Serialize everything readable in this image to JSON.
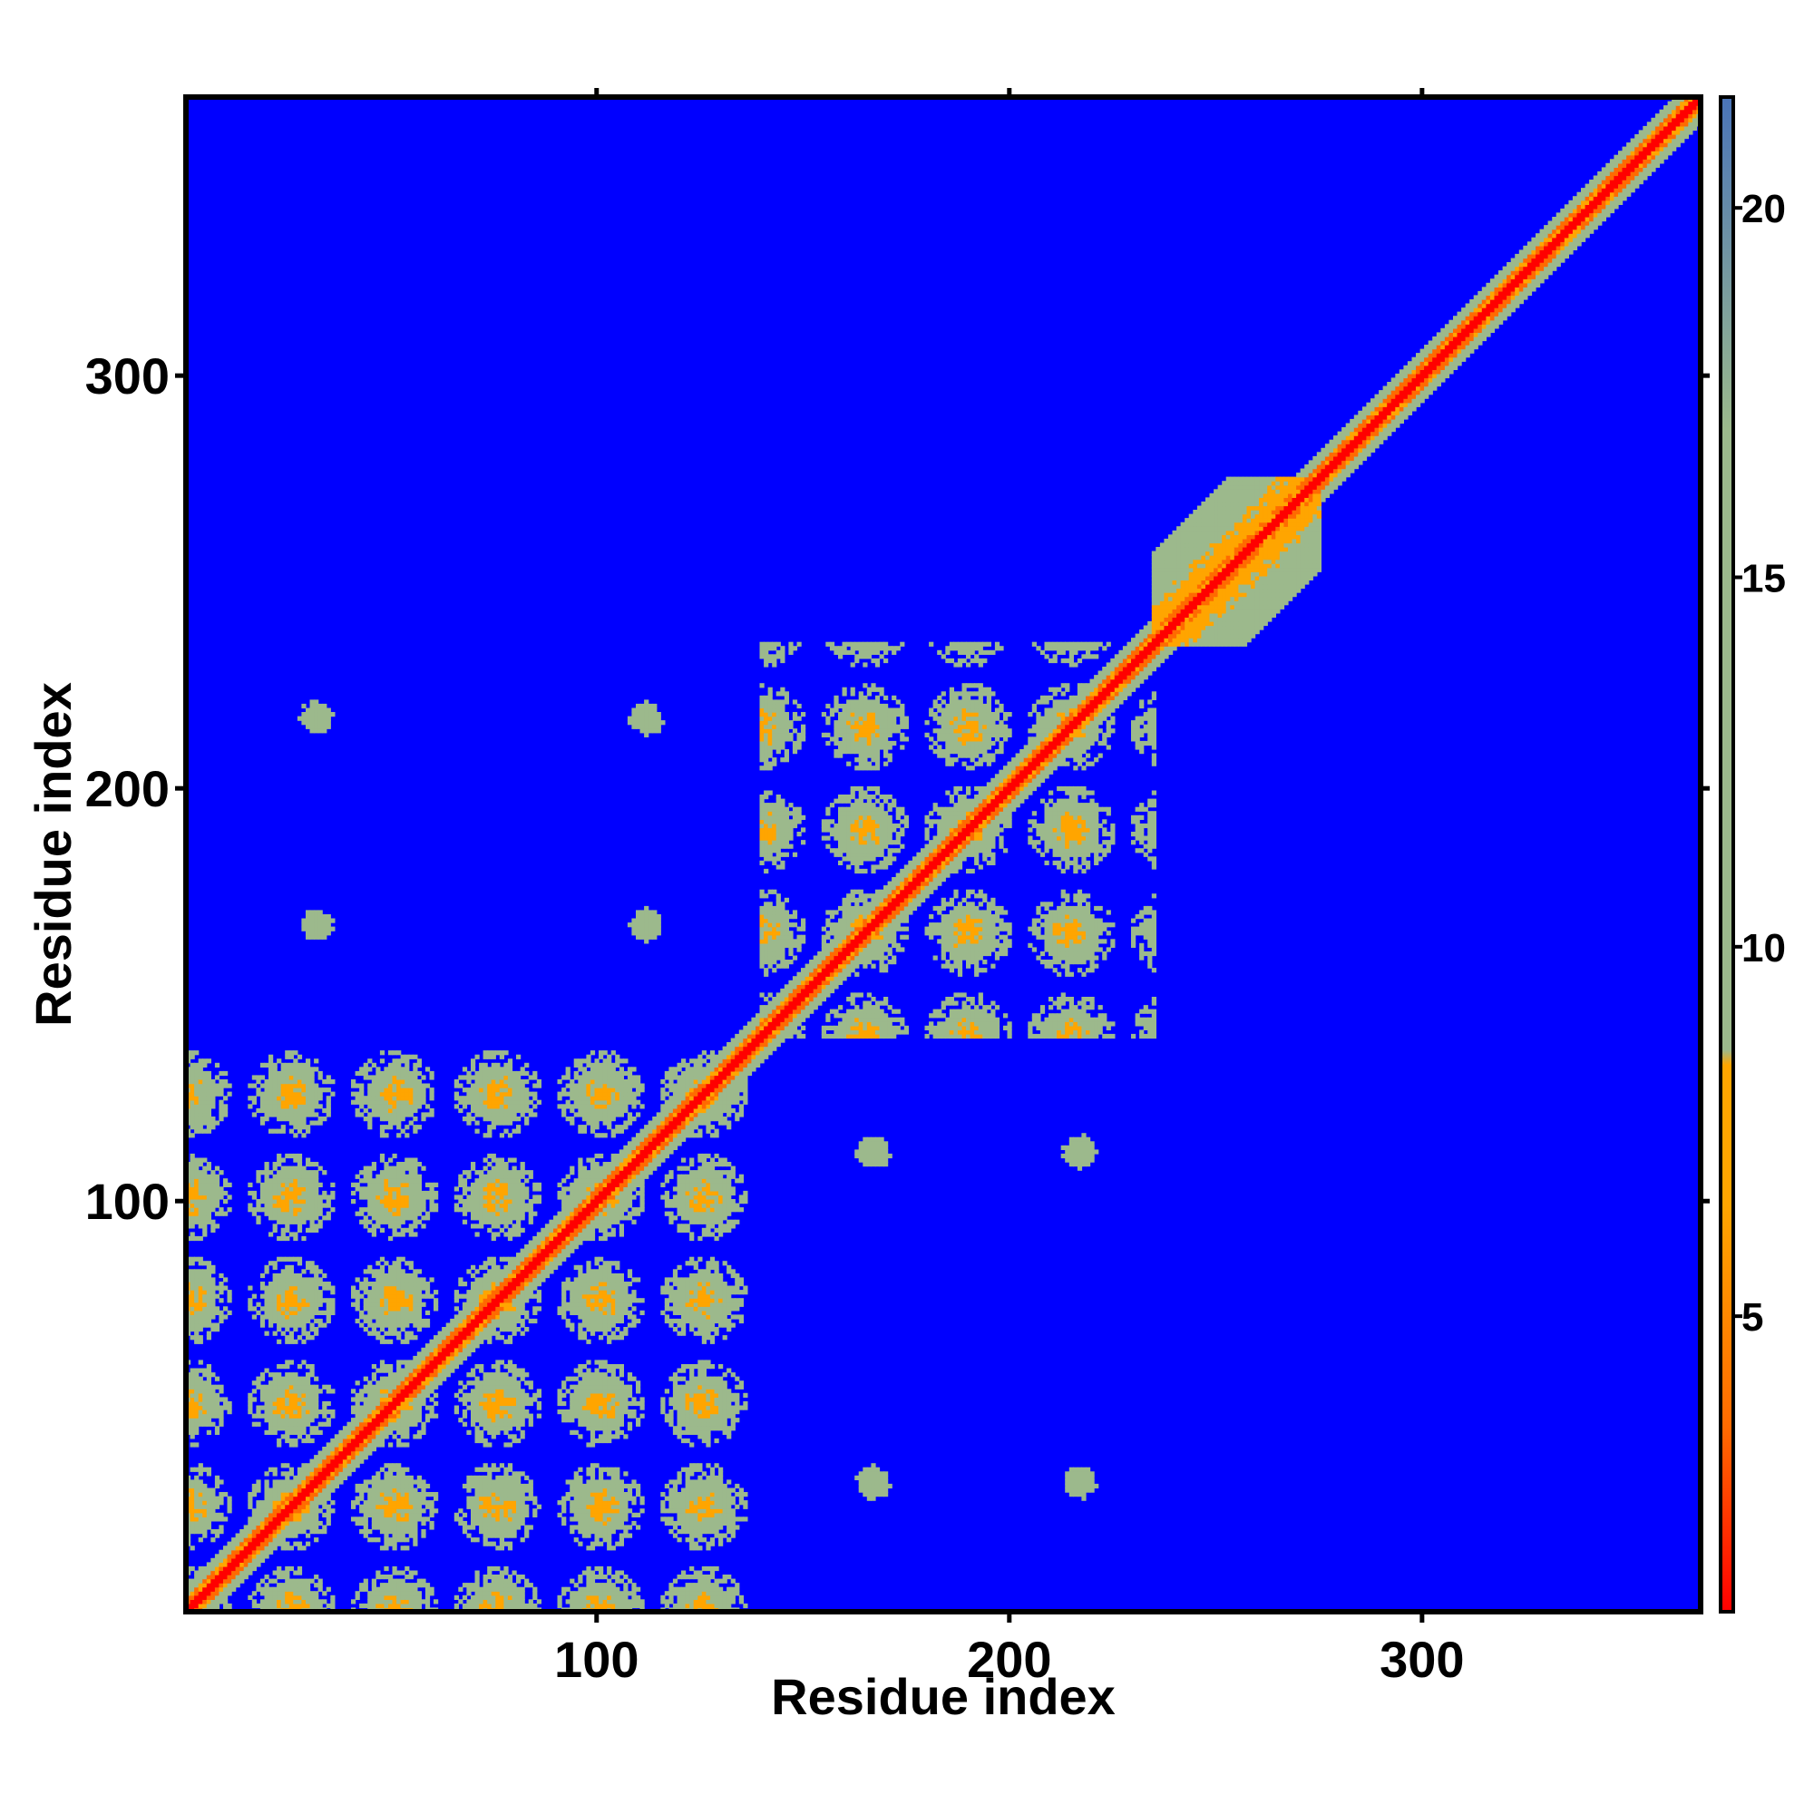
{
  "chart_data": {
    "type": "heatmap",
    "title": "",
    "xlabel": "Residue index",
    "ylabel": "Residue index",
    "xlim": [
      1,
      367
    ],
    "ylim": [
      1,
      367
    ],
    "x_ticks": [
      100,
      200,
      300
    ],
    "y_ticks": [
      100,
      200,
      300
    ],
    "x_tick_labels": [
      "100",
      "200",
      "300"
    ],
    "y_tick_labels": [
      "100",
      "200",
      "300"
    ],
    "colorbar": {
      "range": [
        1,
        21.5
      ],
      "ticks": [
        5,
        10,
        15,
        20
      ],
      "tick_labels": [
        "5",
        "10",
        "15",
        "20"
      ],
      "colors": {
        "near": "#ff0000",
        "close": "#ff6a00",
        "mid": "#ffa500",
        "contact": "#9cb98c",
        "far": "#0000ff",
        "top": "#4a74b8"
      }
    },
    "structure": {
      "diagonal": [
        1,
        367
      ],
      "domain_1": [
        1,
        140
      ],
      "domain_2": [
        140,
        235
      ],
      "helical_segment": [
        235,
        275
      ],
      "isolated_contacts": [
        {
          "x": 32,
          "y": 217
        },
        {
          "x": 112,
          "y": 217
        },
        {
          "x": 32,
          "y": 167
        },
        {
          "x": 112,
          "y": 167
        },
        {
          "x": 167,
          "y": 112
        },
        {
          "x": 217,
          "y": 112
        },
        {
          "x": 167,
          "y": 32
        },
        {
          "x": 217,
          "y": 32
        }
      ]
    }
  }
}
